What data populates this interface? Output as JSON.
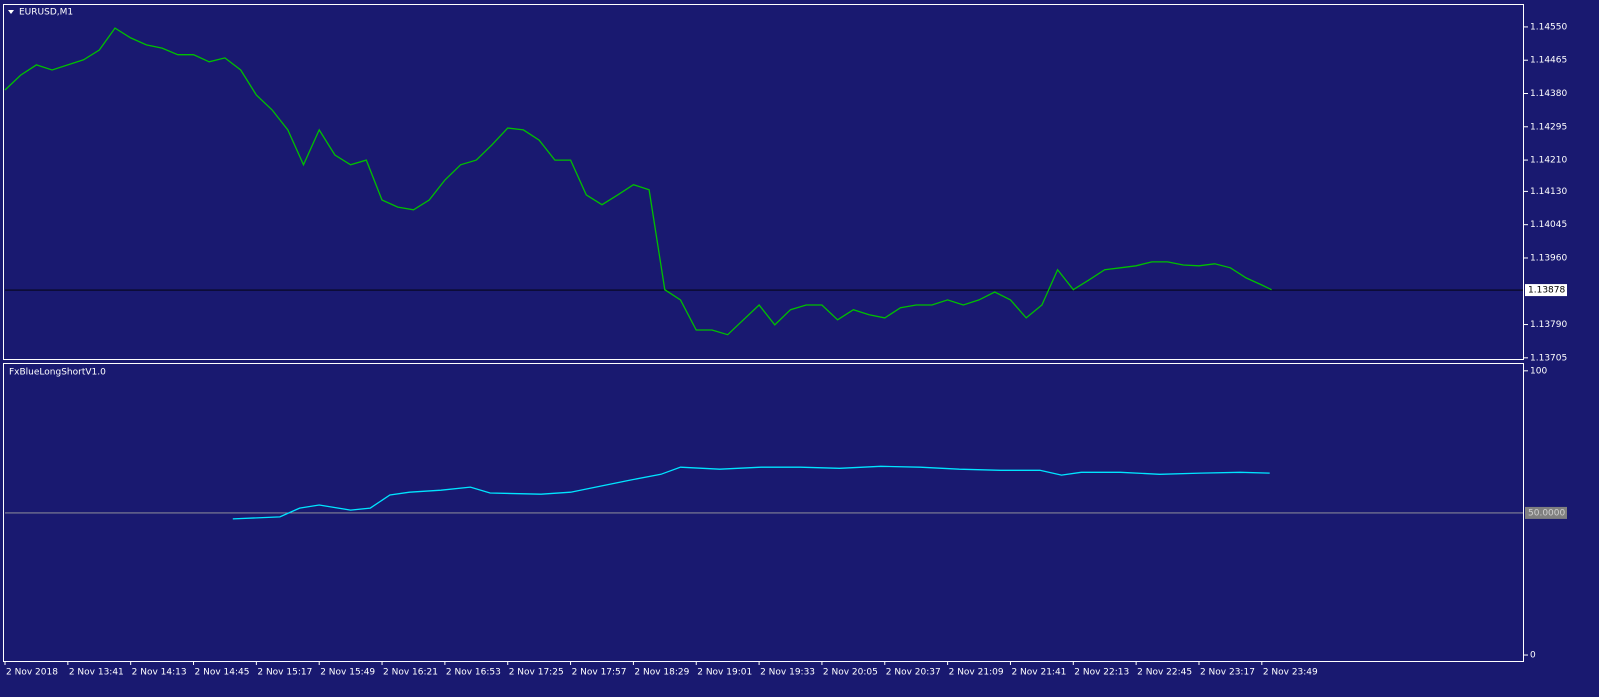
{
  "chart_data": [
    {
      "type": "line",
      "title": "EURUSD,M1",
      "color": "#00c000",
      "x": [
        "2 Nov 13:09",
        "2 Nov 13:17",
        "2 Nov 13:25",
        "2 Nov 13:33",
        "2 Nov 13:41",
        "2 Nov 13:49",
        "2 Nov 13:57",
        "2 Nov 14:05",
        "2 Nov 14:13",
        "2 Nov 14:21",
        "2 Nov 14:29",
        "2 Nov 14:37",
        "2 Nov 14:45",
        "2 Nov 14:53",
        "2 Nov 15:01",
        "2 Nov 15:09",
        "2 Nov 15:17",
        "2 Nov 15:25",
        "2 Nov 15:33",
        "2 Nov 15:41",
        "2 Nov 15:49",
        "2 Nov 15:57",
        "2 Nov 16:05",
        "2 Nov 16:13",
        "2 Nov 16:21",
        "2 Nov 16:29",
        "2 Nov 16:37",
        "2 Nov 16:45",
        "2 Nov 16:53",
        "2 Nov 17:01",
        "2 Nov 17:09",
        "2 Nov 17:17",
        "2 Nov 17:25",
        "2 Nov 17:33",
        "2 Nov 17:41",
        "2 Nov 17:49",
        "2 Nov 17:57",
        "2 Nov 18:05",
        "2 Nov 18:13",
        "2 Nov 18:21",
        "2 Nov 18:29",
        "2 Nov 18:37",
        "2 Nov 18:45",
        "2 Nov 18:53",
        "2 Nov 19:01",
        "2 Nov 19:09",
        "2 Nov 19:17",
        "2 Nov 19:25",
        "2 Nov 19:33",
        "2 Nov 19:41",
        "2 Nov 19:49",
        "2 Nov 19:57",
        "2 Nov 20:05",
        "2 Nov 20:13",
        "2 Nov 20:21",
        "2 Nov 20:29",
        "2 Nov 20:37",
        "2 Nov 20:45",
        "2 Nov 20:53",
        "2 Nov 21:01",
        "2 Nov 21:09",
        "2 Nov 21:17",
        "2 Nov 21:25",
        "2 Nov 21:33",
        "2 Nov 21:41",
        "2 Nov 21:49",
        "2 Nov 21:57",
        "2 Nov 22:05",
        "2 Nov 22:13",
        "2 Nov 22:21",
        "2 Nov 22:29",
        "2 Nov 22:37",
        "2 Nov 22:45",
        "2 Nov 22:53",
        "2 Nov 23:01",
        "2 Nov 23:09",
        "2 Nov 23:17",
        "2 Nov 23:25",
        "2 Nov 23:33",
        "2 Nov 23:41",
        "2 Nov 23:49",
        "2 Nov 23:54"
      ],
      "values": [
        1.14389,
        1.14427,
        1.14453,
        1.1444,
        1.14453,
        1.14466,
        1.14491,
        1.14547,
        1.14522,
        1.14504,
        1.14496,
        1.14479,
        1.14479,
        1.14461,
        1.14471,
        1.1444,
        1.14376,
        1.14338,
        1.14287,
        1.14198,
        1.14287,
        1.14223,
        1.14198,
        1.1421,
        1.14108,
        1.1409,
        1.14083,
        1.14108,
        1.14159,
        1.14198,
        1.1421,
        1.14249,
        1.14292,
        1.14287,
        1.14261,
        1.1421,
        1.1421,
        1.14121,
        1.14096,
        1.14121,
        1.14147,
        1.14134,
        1.13879,
        1.13853,
        1.13776,
        1.13776,
        1.13764,
        1.13802,
        1.1384,
        1.13789,
        1.13828,
        1.1384,
        1.1384,
        1.13802,
        1.13828,
        1.13815,
        1.13807,
        1.13833,
        1.1384,
        1.1384,
        1.13853,
        1.1384,
        1.13853,
        1.13873,
        1.13853,
        1.13807,
        1.1384,
        1.1393,
        1.13879,
        1.13904,
        1.1393,
        1.13935,
        1.1394,
        1.1395,
        1.1395,
        1.13942,
        1.1394,
        1.13945,
        1.13935,
        1.13909,
        1.13891,
        1.13879
      ],
      "xlim": [
        "2 Nov 13:09",
        "3 Nov 02:02"
      ],
      "ylim": [
        1.13702,
        1.14606
      ],
      "yticks": [
        {
          "value": 1.1455,
          "label": "1.14550"
        },
        {
          "value": 1.14465,
          "label": "1.14465"
        },
        {
          "value": 1.1438,
          "label": "1.14380"
        },
        {
          "value": 1.14295,
          "label": "1.14295"
        },
        {
          "value": 1.1421,
          "label": "1.14210"
        },
        {
          "value": 1.1413,
          "label": "1.14130"
        },
        {
          "value": 1.14045,
          "label": "1.14045"
        },
        {
          "value": 1.1396,
          "label": "1.13960"
        },
        {
          "value": 1.1379,
          "label": "1.13790"
        },
        {
          "value": 1.13705,
          "label": "1.13705"
        }
      ],
      "level": {
        "value": 1.13878,
        "label": "1.13878"
      }
    },
    {
      "type": "line",
      "title": "FxBlueLongShortV1.0",
      "color": "#00e5ff",
      "x": [
        "2 Nov 15:05",
        "2 Nov 15:29",
        "2 Nov 15:39",
        "2 Nov 15:49",
        "2 Nov 16:05",
        "2 Nov 16:15",
        "2 Nov 16:25",
        "2 Nov 16:35",
        "2 Nov 16:51",
        "2 Nov 17:06",
        "2 Nov 17:16",
        "2 Nov 17:42",
        "2 Nov 17:57",
        "2 Nov 18:12",
        "2 Nov 18:27",
        "2 Nov 18:43",
        "2 Nov 18:53",
        "2 Nov 19:13",
        "2 Nov 19:34",
        "2 Nov 19:54",
        "2 Nov 20:14",
        "2 Nov 20:35",
        "2 Nov 20:55",
        "2 Nov 21:15",
        "2 Nov 21:36",
        "2 Nov 21:56",
        "2 Nov 22:07",
        "2 Nov 22:17",
        "2 Nov 22:37",
        "2 Nov 22:57",
        "2 Nov 23:18",
        "2 Nov 23:38",
        "2 Nov 23:53"
      ],
      "values": [
        47.9,
        48.6,
        51.7,
        52.8,
        51.0,
        51.7,
        56.3,
        57.3,
        58.0,
        59.1,
        57.0,
        56.6,
        57.3,
        59.4,
        61.5,
        63.6,
        66.1,
        65.4,
        66.1,
        66.1,
        65.7,
        66.4,
        66.1,
        65.4,
        65.0,
        65.0,
        63.3,
        64.3,
        64.3,
        63.6,
        64.0,
        64.3,
        64.0
      ],
      "xlim": [
        "2 Nov 13:09",
        "3 Nov 02:02"
      ],
      "xticks": [
        {
          "value": "2 Nov 13:09",
          "label": "2 Nov 2018"
        },
        "2 Nov 13:41",
        "2 Nov 14:13",
        "2 Nov 14:45",
        "2 Nov 15:17",
        "2 Nov 15:49",
        "2 Nov 16:21",
        "2 Nov 16:53",
        "2 Nov 17:25",
        "2 Nov 17:57",
        "2 Nov 18:29",
        "2 Nov 19:01",
        "2 Nov 19:33",
        "2 Nov 20:05",
        "2 Nov 20:37",
        "2 Nov 21:09",
        "2 Nov 21:41",
        "2 Nov 22:13",
        "2 Nov 22:45",
        "2 Nov 23:17",
        "2 Nov 23:49"
      ],
      "ylim": [
        -2.1,
        102.4
      ],
      "yticks": [
        0,
        100
      ],
      "level": {
        "value": 50,
        "label": "50.0000"
      }
    }
  ]
}
